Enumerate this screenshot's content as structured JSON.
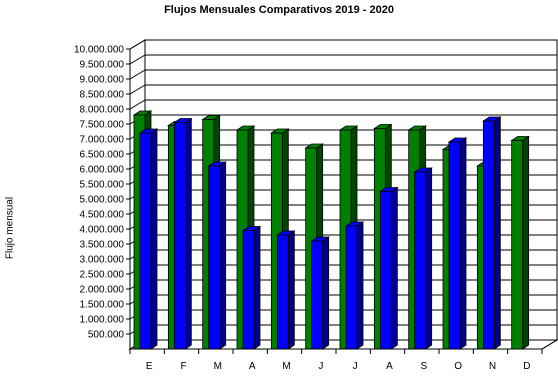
{
  "chart_data": {
    "type": "bar",
    "title": "Flujos Mensuales Comparativos 2019 - 2020",
    "ylabel": "Flujo mensual",
    "xlabel": "",
    "categories": [
      "E",
      "F",
      "M",
      "A",
      "M",
      "J",
      "J",
      "A",
      "S",
      "O",
      "N",
      "D"
    ],
    "series": [
      {
        "color": "#008000",
        "values": [
          7800000,
          7450000,
          7650000,
          7300000,
          7200000,
          6700000,
          7300000,
          7350000,
          7300000,
          6650000,
          6100000,
          6950000
        ]
      },
      {
        "color": "#0000ff",
        "values": [
          7200000,
          7550000,
          6100000,
          3950000,
          3800000,
          3600000,
          4100000,
          5250000,
          5900000,
          6900000,
          7600000,
          null
        ]
      }
    ],
    "ylim": [
      0,
      10000000
    ],
    "yticks": [
      "500.000",
      "1.000.000",
      "1.500.000",
      "2.000.000",
      "2.500.000",
      "3.000.000",
      "3.500.000",
      "4.000.000",
      "4.500.000",
      "5.000.000",
      "5.500.000",
      "6.000.000",
      "6.500.000",
      "7.000.000",
      "7.500.000",
      "8.000.000",
      "8.500.000",
      "9.000.000",
      "9.500.000",
      "10.000.000"
    ],
    "grid": true,
    "legend": "none"
  }
}
